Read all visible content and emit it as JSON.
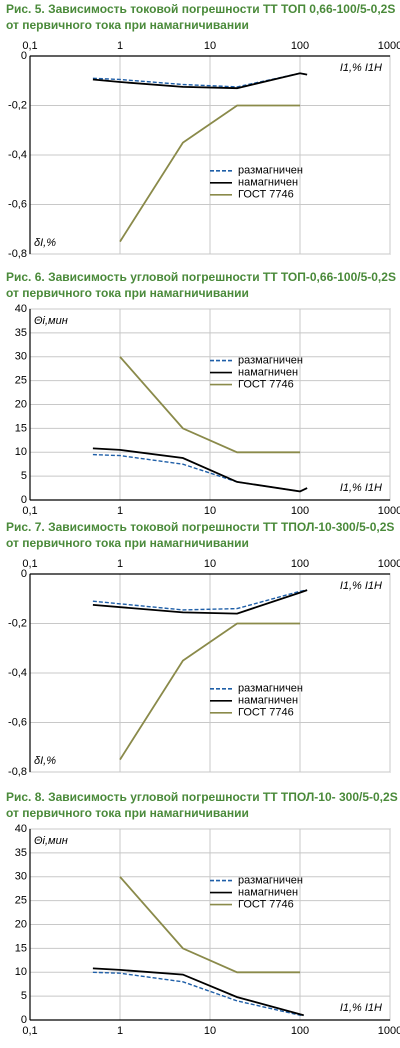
{
  "chart_data": [
    {
      "type": "line",
      "title": [
        "Рис. 5. Зависимость токовой погрешности ТТ ТОП 0,66-100/5-0,2S",
        "от первичного тока при намагничивании"
      ],
      "xlabel": "I1,% I1Н",
      "ylabel": "δI,%",
      "xscale": "log",
      "xaxis_position": "top",
      "legend": "middle",
      "grid": true,
      "xlim": [
        0.1,
        1000
      ],
      "xticks": [
        {
          "value": 0.1,
          "label": "0,1"
        },
        1,
        10,
        100,
        1000
      ],
      "ylim": [
        -0.8,
        0
      ],
      "yticks": [
        0,
        {
          "value": -0.2,
          "label": "-0,2"
        },
        {
          "value": -0.4,
          "label": "-0,4"
        },
        {
          "value": -0.6,
          "label": "-0,6"
        },
        {
          "value": -0.8,
          "label": "-0,8"
        }
      ],
      "series": [
        {
          "name": "размагничен",
          "color": "#1f5fa8",
          "dash": true,
          "x": [
            0.5,
            1,
            5,
            20,
            100,
            120
          ],
          "values": [
            -0.09,
            -0.095,
            -0.115,
            -0.125,
            -0.07,
            -0.075
          ]
        },
        {
          "name": "намагничен",
          "color": "#000000",
          "dash": false,
          "x": [
            0.5,
            1,
            5,
            20,
            100,
            120
          ],
          "values": [
            -0.095,
            -0.105,
            -0.125,
            -0.13,
            -0.07,
            -0.075
          ]
        },
        {
          "name": "ГОСТ 7746",
          "color": "#8a8a4a",
          "dash": false,
          "x": [
            1,
            5,
            20,
            100
          ],
          "values": [
            -0.75,
            -0.35,
            -0.2,
            -0.2
          ]
        }
      ]
    },
    {
      "type": "line",
      "title": [
        "Рис. 6. Зависимость угловой погрешности ТТ ТОП-0,66-100/5-0,2S",
        "от первичного тока при намагничивании"
      ],
      "xlabel": "I1,% I1Н",
      "ylabel": "Θi,мин",
      "xscale": "log",
      "xaxis_position": "bottom",
      "legend": "top",
      "grid": true,
      "xlim": [
        0.1,
        1000
      ],
      "xticks": [
        {
          "value": 0.1,
          "label": "0,1"
        },
        1,
        10,
        100,
        1000
      ],
      "ylim": [
        0,
        40
      ],
      "yticks": [
        0,
        5,
        10,
        15,
        20,
        25,
        30,
        35,
        40
      ],
      "series": [
        {
          "name": "размагничен",
          "color": "#1f5fa8",
          "dash": true,
          "x": [
            0.5,
            1,
            5,
            20,
            100,
            120
          ],
          "values": [
            9.5,
            9.3,
            7.5,
            3.8,
            1.8,
            2.5
          ]
        },
        {
          "name": "намагничен",
          "color": "#000000",
          "dash": false,
          "x": [
            0.5,
            1,
            5,
            20,
            100,
            120
          ],
          "values": [
            10.8,
            10.5,
            8.8,
            3.8,
            1.8,
            2.5
          ]
        },
        {
          "name": "ГОСТ 7746",
          "color": "#8a8a4a",
          "dash": false,
          "x": [
            1,
            5,
            20,
            100
          ],
          "values": [
            30,
            15,
            10,
            10
          ]
        }
      ]
    },
    {
      "type": "line",
      "title": [
        "Рис. 7. Зависимость токовой погрешности ТТ ТПОЛ-10-300/5-0,2S",
        "от первичного тока при намагничивании"
      ],
      "xlabel": "I1,% I1Н",
      "ylabel": "δI,%",
      "xscale": "log",
      "xaxis_position": "top",
      "legend": "middle",
      "grid": true,
      "xlim": [
        0.1,
        1000
      ],
      "xticks": [
        {
          "value": 0.1,
          "label": "0,1"
        },
        1,
        10,
        100,
        1000
      ],
      "ylim": [
        -0.8,
        0
      ],
      "yticks": [
        0,
        {
          "value": -0.2,
          "label": "-0,2"
        },
        {
          "value": -0.4,
          "label": "-0,4"
        },
        {
          "value": -0.6,
          "label": "-0,6"
        },
        {
          "value": -0.8,
          "label": "-0,8"
        }
      ],
      "series": [
        {
          "name": "размагничен",
          "color": "#1f5fa8",
          "dash": true,
          "x": [
            0.5,
            5,
            20,
            100,
            120
          ],
          "values": [
            -0.11,
            -0.145,
            -0.14,
            -0.07,
            -0.065
          ]
        },
        {
          "name": "намагничен",
          "color": "#000000",
          "dash": false,
          "x": [
            0.5,
            5,
            20,
            100,
            120
          ],
          "values": [
            -0.125,
            -0.155,
            -0.16,
            -0.075,
            -0.065
          ]
        },
        {
          "name": "ГОСТ 7746",
          "color": "#8a8a4a",
          "dash": false,
          "x": [
            1,
            5,
            20,
            100
          ],
          "values": [
            -0.75,
            -0.35,
            -0.2,
            -0.2
          ]
        }
      ]
    },
    {
      "type": "line",
      "title": [
        "Рис. 8. Зависимость угловой погрешности ТТ ТПОЛ-10- 300/5-0,2S",
        "от первичного тока при намагничивании"
      ],
      "xlabel": "I1,% I1Н",
      "ylabel": "Θi,мин",
      "xscale": "log",
      "xaxis_position": "bottom",
      "legend": "top",
      "grid": true,
      "xlim": [
        0.1,
        1000
      ],
      "xticks": [
        {
          "value": 0.1,
          "label": "0,1"
        },
        1,
        10,
        100,
        1000
      ],
      "ylim": [
        0,
        40
      ],
      "yticks": [
        0,
        5,
        10,
        15,
        20,
        25,
        30,
        35,
        40
      ],
      "series": [
        {
          "name": "размагничен",
          "color": "#1f5fa8",
          "dash": true,
          "x": [
            0.5,
            1,
            5,
            20,
            100,
            110
          ],
          "values": [
            10,
            9.8,
            8,
            4,
            1,
            1
          ]
        },
        {
          "name": "намагничен",
          "color": "#000000",
          "dash": false,
          "x": [
            0.5,
            1,
            5,
            20,
            100,
            110
          ],
          "values": [
            10.8,
            10.5,
            9.5,
            4.8,
            1.2,
            1
          ]
        },
        {
          "name": "ГОСТ 7746",
          "color": "#8a8a4a",
          "dash": false,
          "x": [
            1,
            5,
            20,
            100
          ],
          "values": [
            30,
            15,
            10,
            10
          ]
        }
      ]
    }
  ]
}
